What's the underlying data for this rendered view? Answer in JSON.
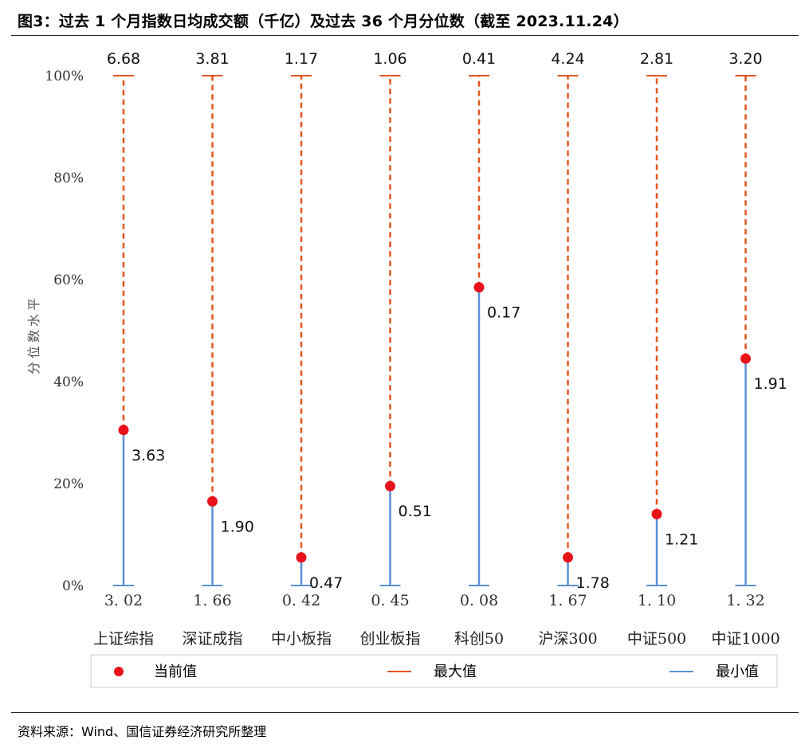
{
  "figure": {
    "title": "图3：过去 1 个月指数日均成交额（千亿）及过去 36 个月分位数（截至 2023.11.24）",
    "source": "资料来源：Wind、国信证券经济研究所整理"
  },
  "chart_data": {
    "type": "range-dot",
    "ylabel": "分位数水平",
    "ylim": [
      0,
      100
    ],
    "yticks": [
      "0%",
      "20%",
      "40%",
      "60%",
      "80%",
      "100%"
    ],
    "categories": [
      "上证综指",
      "深证成指",
      "中小板指",
      "创业板指",
      "科创50",
      "沪深300",
      "中证500",
      "中证1000"
    ],
    "max_labels": [
      "6.68",
      "3.81",
      "1.17",
      "1.06",
      "0.41",
      "4.24",
      "2.81",
      "3.20"
    ],
    "min_labels": [
      "3. 02",
      "1. 66",
      "0. 42",
      "0. 45",
      "0. 08",
      "1. 67",
      "1. 10",
      "1. 32"
    ],
    "current_values": [
      "3.63",
      "1.90",
      "0.47",
      "0.51",
      "0.17",
      "1.78",
      "1.21",
      "1.91"
    ],
    "current_percentile": [
      30.5,
      16.5,
      5.5,
      19.5,
      58.5,
      5.5,
      14,
      44.5
    ],
    "legend": {
      "current": "当前值",
      "max": "最大值",
      "min": "最小值"
    },
    "colors": {
      "current": "#e8121a",
      "max": "#e2561f",
      "min": "#5b8fd6"
    }
  }
}
